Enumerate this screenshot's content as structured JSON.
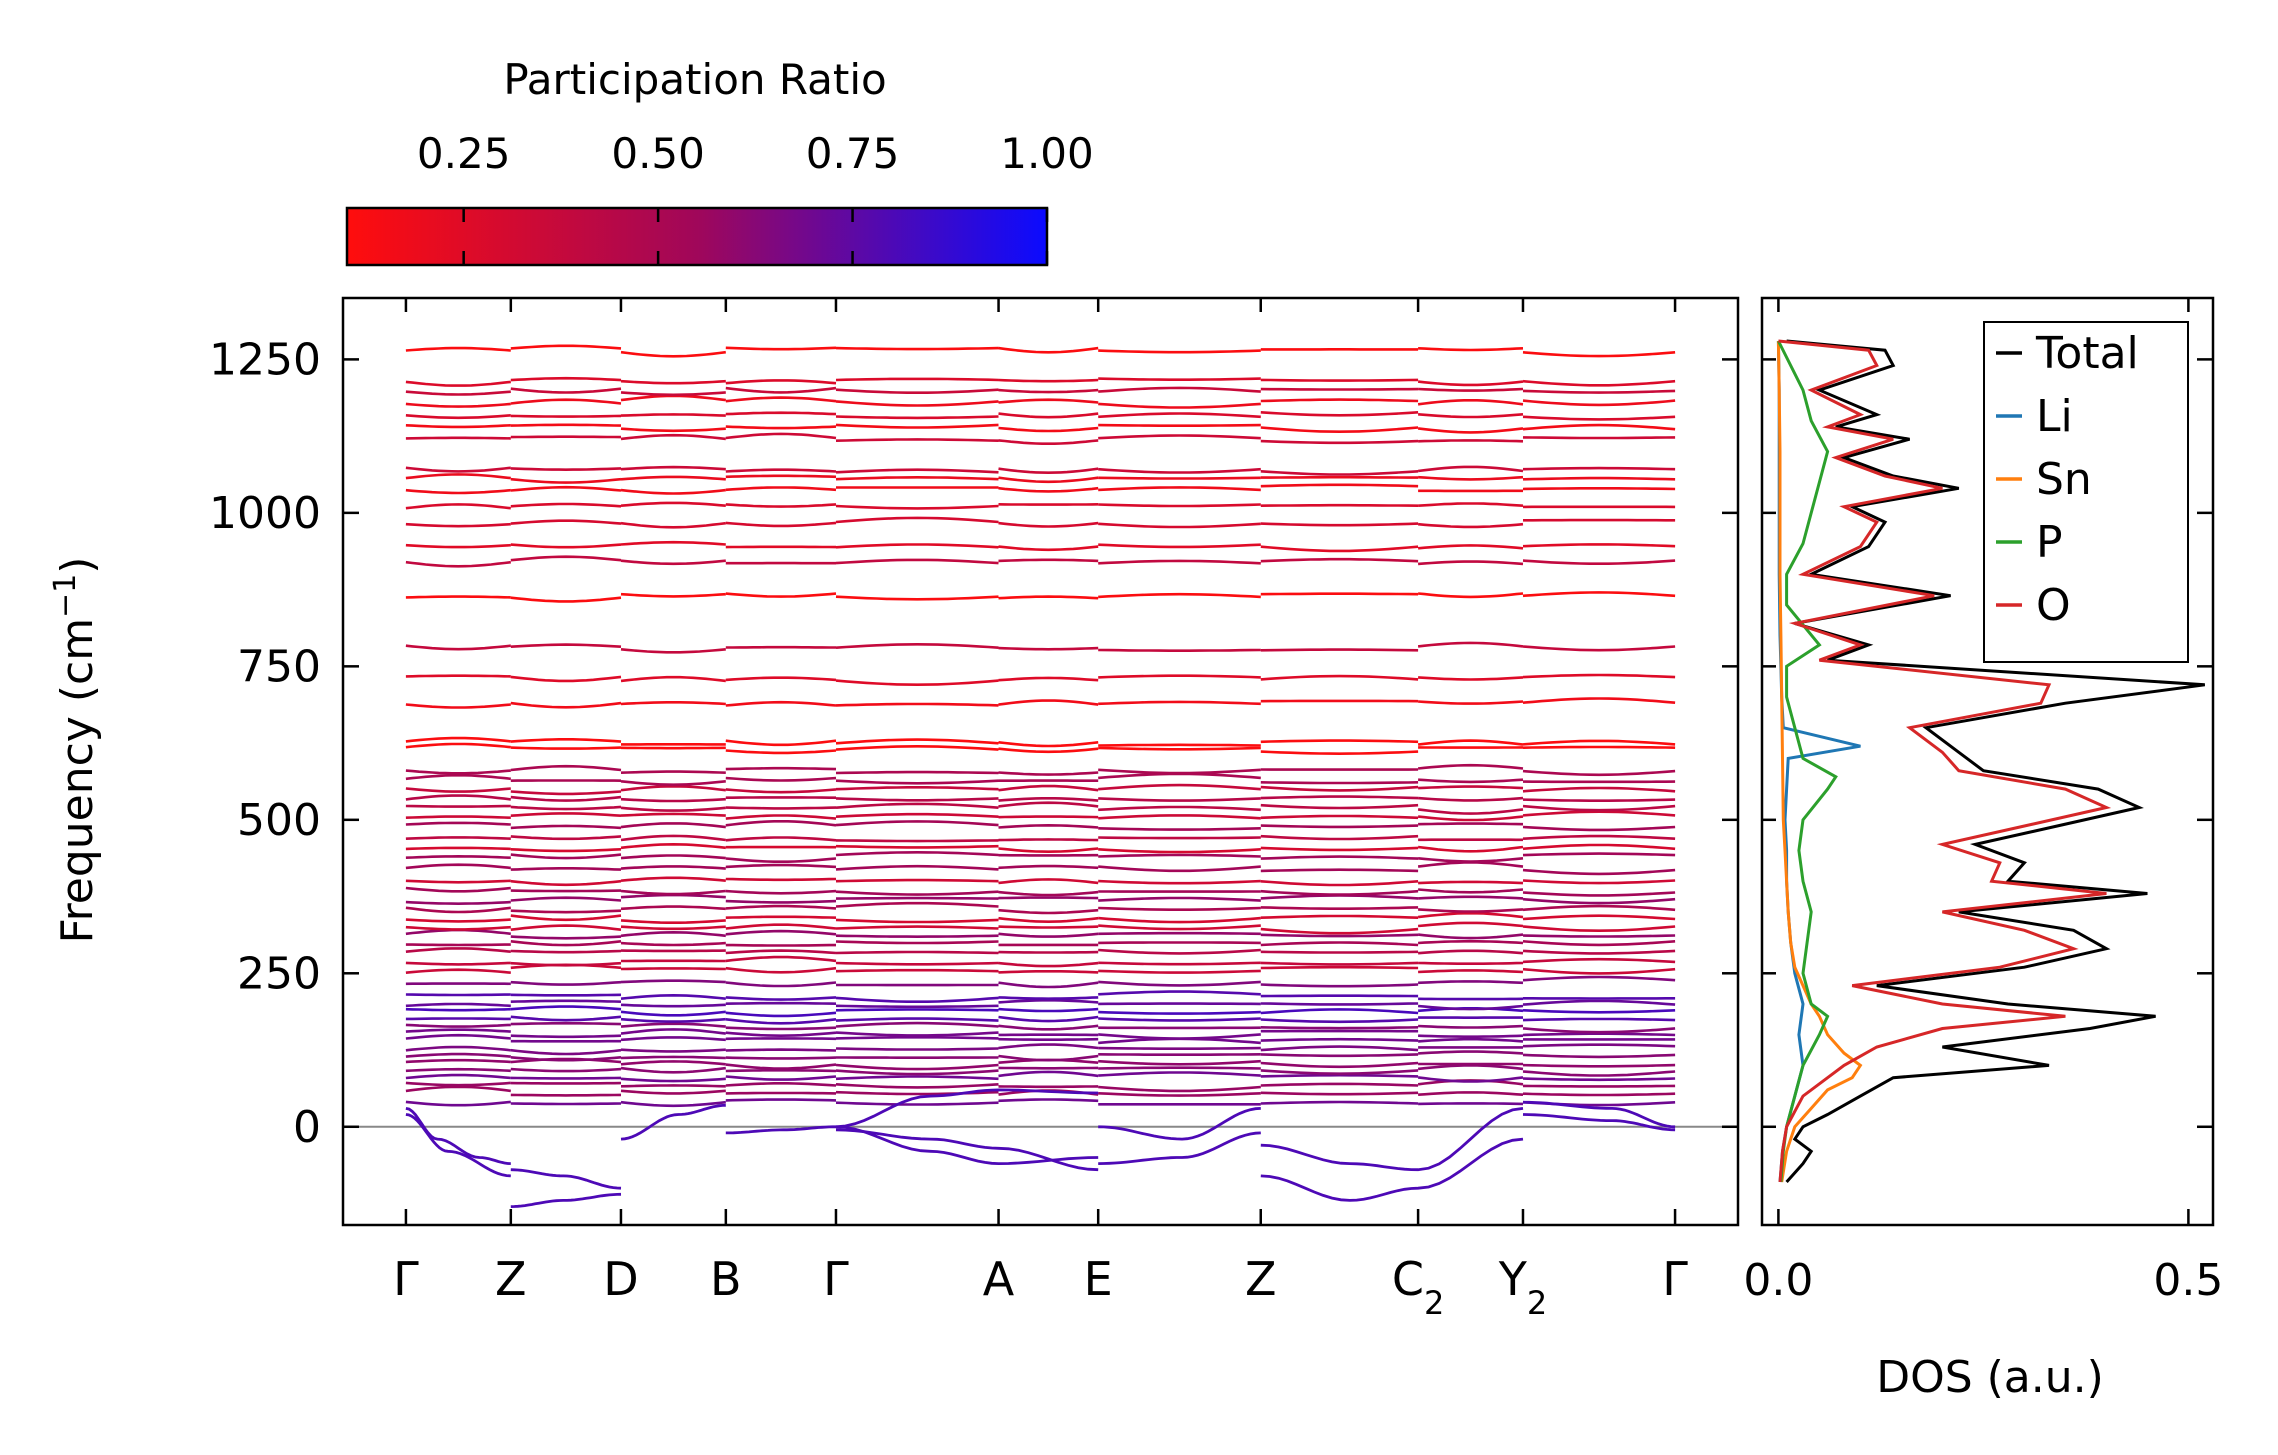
{
  "chart_data": [
    {
      "type": "line",
      "name": "phonon-band-structure",
      "title": "",
      "ylabel": "Frequency (cm",
      "ylabel_sup": "−1",
      "ylabel_close": ")",
      "ylim": [
        -160,
        1350
      ],
      "yticks": [
        0,
        250,
        500,
        750,
        1000,
        1250
      ],
      "ytick_labels": [
        "0",
        "250",
        "500",
        "750",
        "1000",
        "1250"
      ],
      "xlim": [
        -0.6,
        12.7
      ],
      "kpoints": [
        {
          "label": "Γ",
          "sub": "",
          "x": 0
        },
        {
          "label": "Z",
          "sub": "",
          "x": 1
        },
        {
          "label": "D",
          "sub": "",
          "x": 2.05
        },
        {
          "label": "B",
          "sub": "",
          "x": 3.05
        },
        {
          "label": "Γ",
          "sub": "",
          "x": 4.1
        },
        {
          "label": "A",
          "sub": "",
          "x": 5.65
        },
        {
          "label": "E",
          "sub": "",
          "x": 6.6
        },
        {
          "label": "Z",
          "sub": "",
          "x": 8.15
        },
        {
          "label": "C",
          "sub": "2",
          "x": 9.65
        },
        {
          "label": "Y",
          "sub": "2",
          "x": 10.65
        },
        {
          "label": "Γ",
          "sub": "",
          "x": 12.1
        }
      ],
      "zero_line": 0,
      "band_levels_cm1": [
        40,
        55,
        68,
        80,
        92,
        104,
        116,
        128,
        140,
        152,
        164,
        176,
        188,
        200,
        212,
        235,
        255,
        270,
        285,
        300,
        312,
        325,
        340,
        355,
        370,
        385,
        400,
        420,
        440,
        455,
        470,
        490,
        505,
        520,
        535,
        550,
        565,
        580,
        615,
        625,
        690,
        730,
        780,
        865,
        920,
        945,
        985,
        1010,
        1040,
        1055,
        1070,
        1120,
        1140,
        1160,
        1180,
        1200,
        1215,
        1265
      ],
      "negative_branches_cm1": [
        {
          "x": [
            0,
            0.3,
            0.7,
            1.0
          ],
          "y": [
            30,
            -20,
            -50,
            -60
          ]
        },
        {
          "x": [
            0,
            0.4,
            1.0
          ],
          "y": [
            20,
            -40,
            -80
          ]
        },
        {
          "x": [
            1.0,
            1.5,
            2.05
          ],
          "y": [
            -70,
            -80,
            -100
          ]
        },
        {
          "x": [
            1.0,
            1.5,
            2.05
          ],
          "y": [
            -130,
            -120,
            -110
          ]
        },
        {
          "x": [
            2.05,
            2.6,
            3.05
          ],
          "y": [
            -20,
            20,
            35
          ]
        },
        {
          "x": [
            3.05,
            3.6,
            4.1
          ],
          "y": [
            -10,
            -5,
            0
          ]
        },
        {
          "x": [
            4.1,
            5.0,
            5.65,
            6.6
          ],
          "y": [
            0,
            50,
            60,
            55
          ]
        },
        {
          "x": [
            4.1,
            5.0,
            5.65,
            6.6
          ],
          "y": [
            0,
            -40,
            -60,
            -50
          ]
        },
        {
          "x": [
            4.1,
            5.0,
            5.65,
            6.6
          ],
          "y": [
            -5,
            -20,
            -35,
            -70
          ]
        },
        {
          "x": [
            6.6,
            7.4,
            8.15
          ],
          "y": [
            0,
            -20,
            30
          ]
        },
        {
          "x": [
            6.6,
            7.4,
            8.15
          ],
          "y": [
            -60,
            -50,
            -10
          ]
        },
        {
          "x": [
            8.15,
            9.0,
            9.65,
            10.65
          ],
          "y": [
            -80,
            -120,
            -100,
            -20
          ]
        },
        {
          "x": [
            8.15,
            9.0,
            9.65,
            10.65
          ],
          "y": [
            -30,
            -60,
            -70,
            30
          ]
        },
        {
          "x": [
            10.65,
            11.5,
            12.1
          ],
          "y": [
            40,
            30,
            0
          ]
        },
        {
          "x": [
            10.65,
            11.5,
            12.1
          ],
          "y": [
            20,
            10,
            -5
          ]
        }
      ],
      "colorbar": {
        "label": "Participation Ratio",
        "range": [
          0.1,
          1.0
        ],
        "ticks": [
          0.25,
          0.5,
          0.75,
          1.0
        ],
        "tick_labels": [
          "0.25",
          "0.50",
          "0.75",
          "1.00"
        ],
        "color_low": "#ff0d0d",
        "color_mid": "#a0075a",
        "color_high": "#0b0bff"
      }
    },
    {
      "type": "line",
      "name": "density-of-states",
      "xlabel": "DOS (a.u.)",
      "xlim": [
        -0.02,
        0.53
      ],
      "xticks": [
        0.0,
        0.5
      ],
      "xtick_labels": [
        "0.0",
        "0.5"
      ],
      "ylim": [
        -160,
        1350
      ],
      "legend_position": "top-right",
      "series": [
        {
          "name": "Total",
          "color": "#000000",
          "y": [
            -90,
            -60,
            -40,
            -20,
            0,
            20,
            50,
            80,
            100,
            130,
            160,
            180,
            200,
            230,
            260,
            290,
            320,
            350,
            380,
            400,
            430,
            460,
            490,
            520,
            550,
            580,
            610,
            650,
            690,
            720,
            760,
            785,
            820,
            865,
            900,
            945,
            985,
            1010,
            1040,
            1060,
            1090,
            1120,
            1140,
            1160,
            1200,
            1240,
            1265,
            1280
          ],
          "dos": [
            0.01,
            0.03,
            0.04,
            0.02,
            0.03,
            0.06,
            0.1,
            0.14,
            0.33,
            0.2,
            0.38,
            0.46,
            0.28,
            0.12,
            0.3,
            0.4,
            0.36,
            0.22,
            0.45,
            0.28,
            0.3,
            0.24,
            0.34,
            0.44,
            0.39,
            0.25,
            0.22,
            0.18,
            0.35,
            0.52,
            0.06,
            0.11,
            0.02,
            0.21,
            0.04,
            0.11,
            0.13,
            0.09,
            0.22,
            0.14,
            0.08,
            0.16,
            0.07,
            0.12,
            0.05,
            0.14,
            0.13,
            0.01
          ]
        },
        {
          "name": "Li",
          "color": "#1f77b4",
          "y": [
            -90,
            -40,
            0,
            50,
            100,
            150,
            200,
            250,
            300,
            350,
            400,
            450,
            500,
            550,
            600,
            620,
            650,
            700,
            750,
            800,
            900,
            1000,
            1100,
            1200,
            1280
          ],
          "dos": [
            0.002,
            0.005,
            0.01,
            0.02,
            0.03,
            0.025,
            0.03,
            0.02,
            0.015,
            0.012,
            0.01,
            0.01,
            0.008,
            0.01,
            0.012,
            0.1,
            0.006,
            0.004,
            0.003,
            0.002,
            0.001,
            0.001,
            0.001,
            0.001,
            0.0
          ]
        },
        {
          "name": "Sn",
          "color": "#ff7f0e",
          "y": [
            -90,
            -40,
            0,
            30,
            60,
            80,
            100,
            120,
            150,
            180,
            200,
            230,
            260,
            300,
            350,
            400,
            450,
            500,
            600,
            700,
            800,
            900,
            1000,
            1100,
            1200,
            1280
          ],
          "dos": [
            0.004,
            0.01,
            0.02,
            0.04,
            0.06,
            0.09,
            0.1,
            0.08,
            0.06,
            0.05,
            0.04,
            0.03,
            0.02,
            0.015,
            0.012,
            0.01,
            0.008,
            0.006,
            0.005,
            0.004,
            0.003,
            0.002,
            0.002,
            0.002,
            0.001,
            0.0
          ]
        },
        {
          "name": "P",
          "color": "#2ca02c",
          "y": [
            -90,
            -40,
            0,
            50,
            100,
            150,
            180,
            200,
            250,
            300,
            350,
            400,
            450,
            500,
            550,
            570,
            600,
            700,
            750,
            785,
            850,
            900,
            950,
            1000,
            1050,
            1100,
            1150,
            1200,
            1280
          ],
          "dos": [
            0.003,
            0.006,
            0.01,
            0.02,
            0.03,
            0.05,
            0.06,
            0.04,
            0.03,
            0.035,
            0.04,
            0.03,
            0.025,
            0.03,
            0.06,
            0.07,
            0.03,
            0.01,
            0.01,
            0.05,
            0.01,
            0.01,
            0.03,
            0.04,
            0.05,
            0.06,
            0.04,
            0.03,
            0.0
          ]
        },
        {
          "name": "O",
          "color": "#d62728",
          "y": [
            -90,
            -40,
            0,
            50,
            80,
            100,
            130,
            160,
            180,
            200,
            230,
            260,
            290,
            320,
            350,
            380,
            400,
            430,
            460,
            490,
            520,
            550,
            580,
            610,
            650,
            690,
            720,
            760,
            785,
            820,
            865,
            900,
            945,
            985,
            1010,
            1040,
            1060,
            1090,
            1120,
            1140,
            1160,
            1200,
            1240,
            1265,
            1280
          ],
          "dos": [
            0.002,
            0.005,
            0.01,
            0.03,
            0.06,
            0.08,
            0.12,
            0.2,
            0.35,
            0.2,
            0.09,
            0.27,
            0.36,
            0.3,
            0.2,
            0.4,
            0.26,
            0.27,
            0.2,
            0.3,
            0.4,
            0.35,
            0.22,
            0.2,
            0.16,
            0.32,
            0.33,
            0.05,
            0.1,
            0.02,
            0.19,
            0.03,
            0.1,
            0.12,
            0.08,
            0.2,
            0.13,
            0.07,
            0.14,
            0.06,
            0.1,
            0.04,
            0.12,
            0.11,
            0.0
          ]
        }
      ]
    }
  ]
}
